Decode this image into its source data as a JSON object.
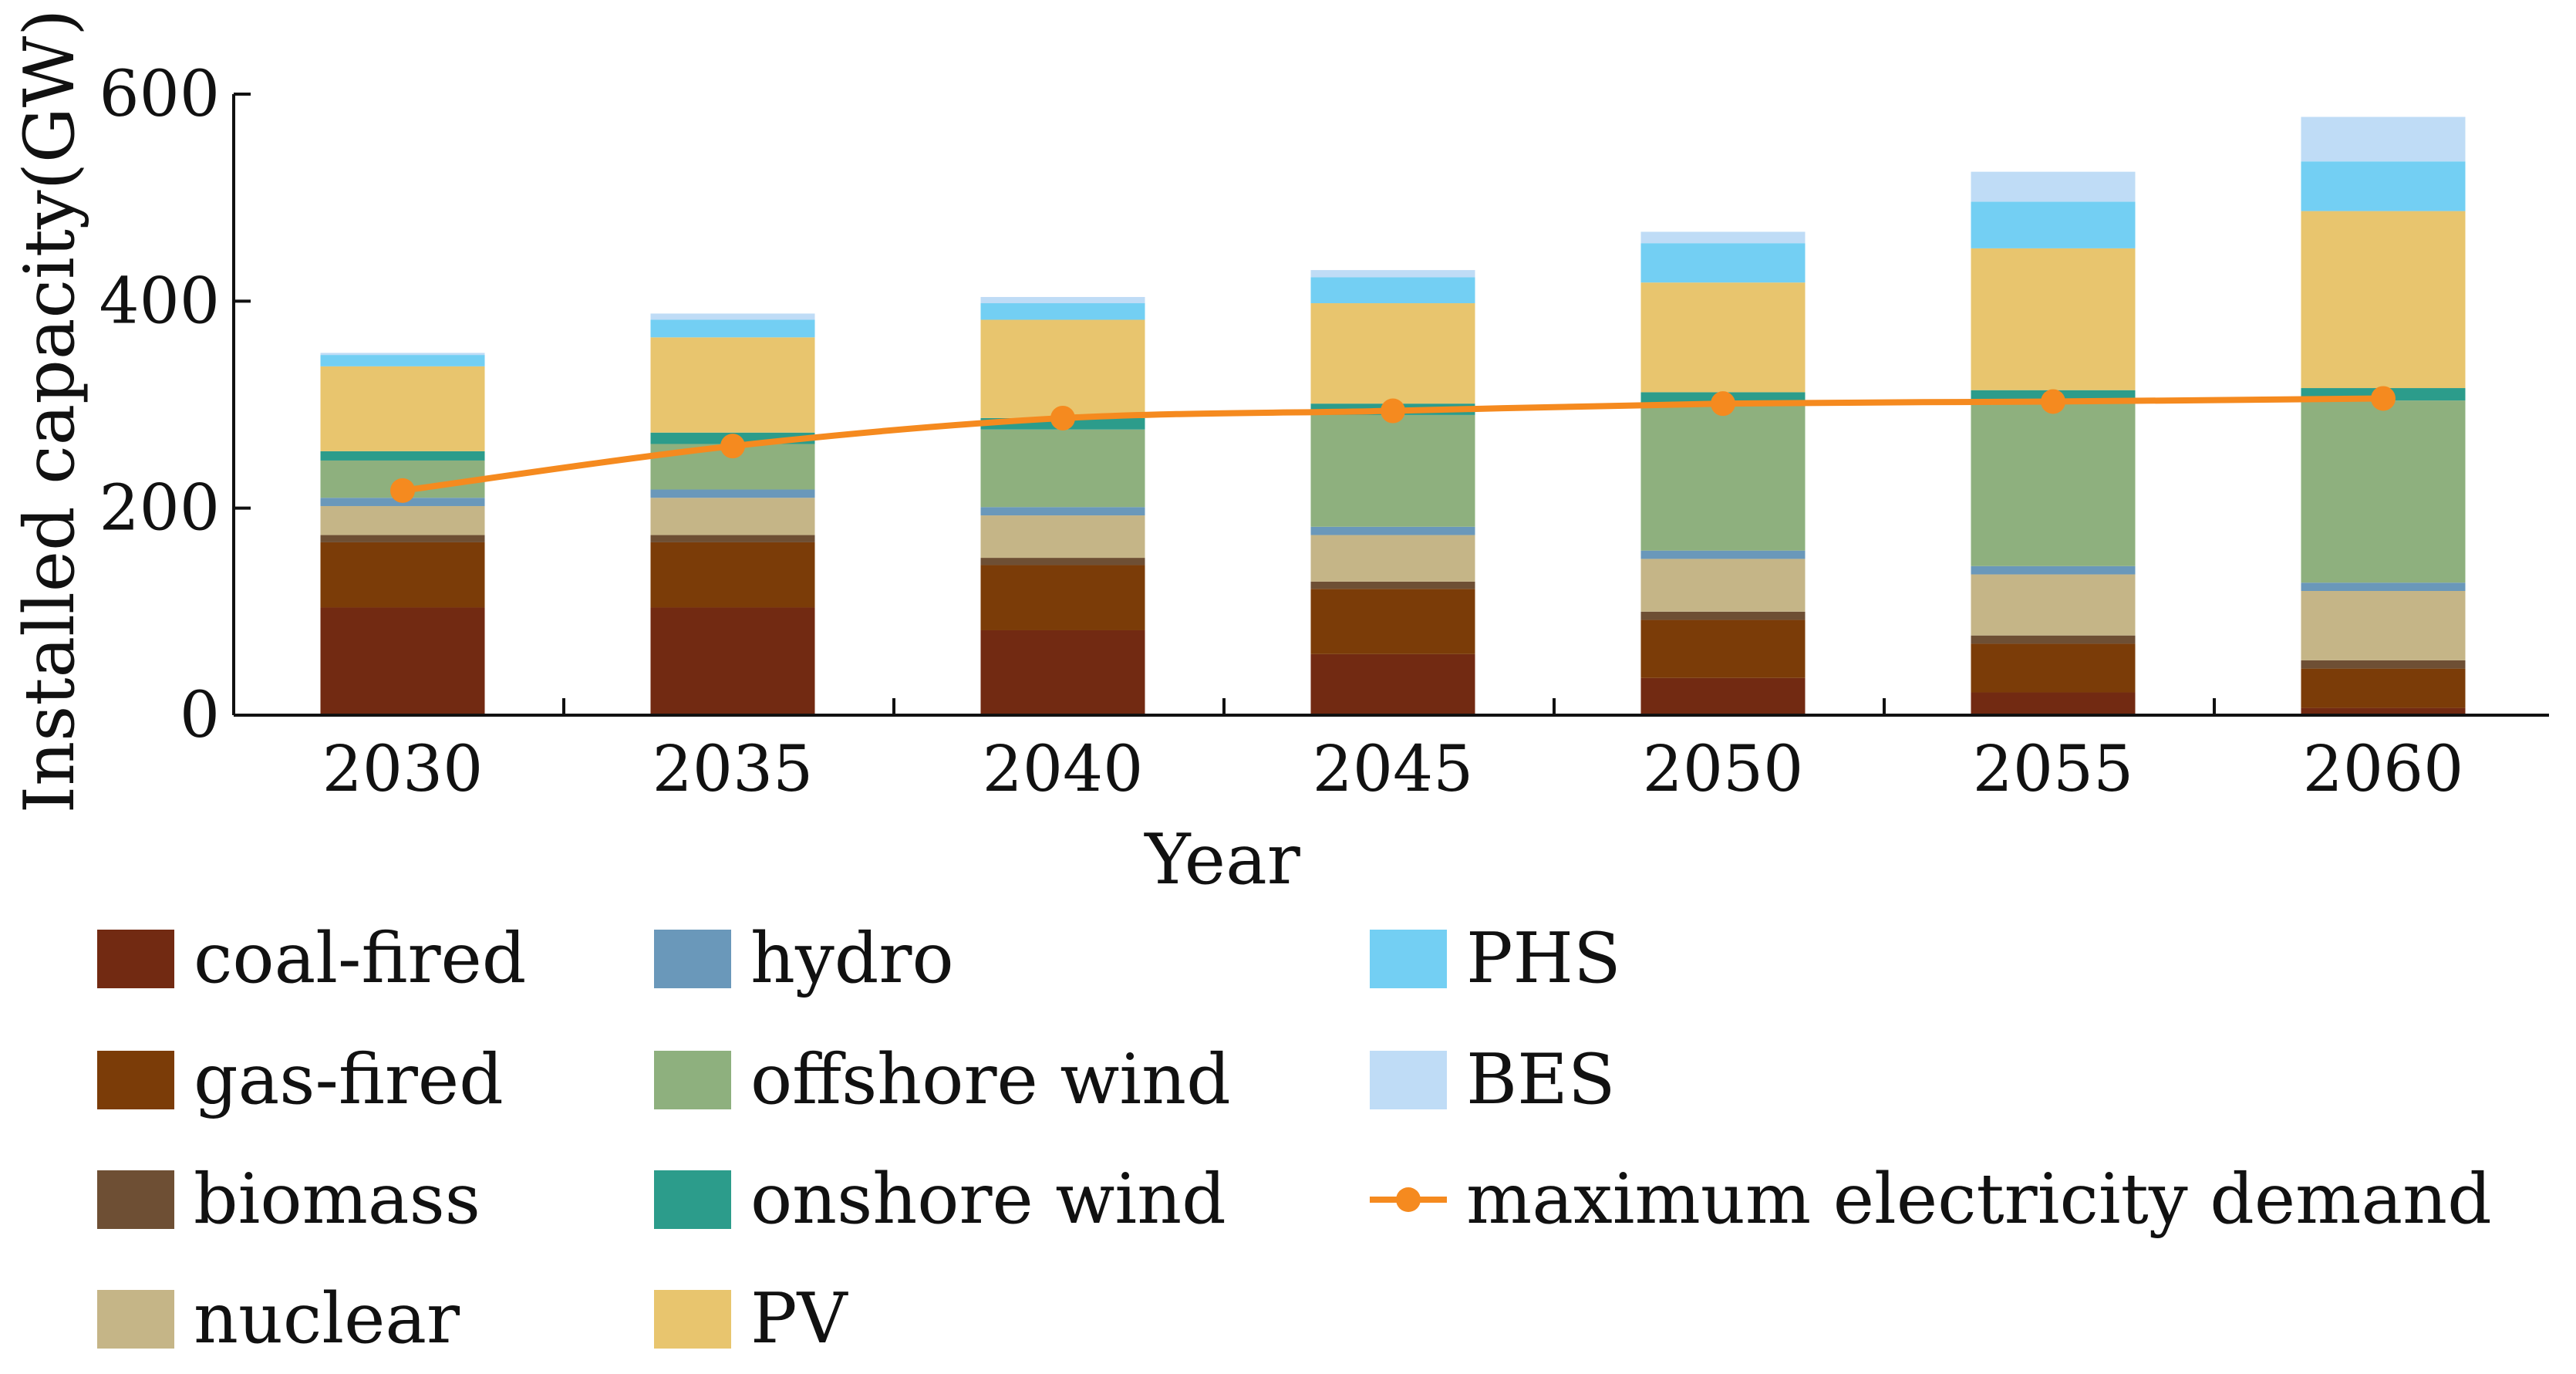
{
  "chart_data": {
    "type": "bar",
    "stacked": true,
    "xlabel": "Year",
    "ylabel": "Installed capacity(GW)",
    "ylim": [
      0,
      600
    ],
    "yticks": [
      0,
      200,
      400,
      600
    ],
    "categories": [
      "2030",
      "2035",
      "2040",
      "2045",
      "2050",
      "2055",
      "2060"
    ],
    "series": [
      {
        "name": "coal-fired",
        "color": "#722a12",
        "values": [
          104,
          104,
          82,
          59,
          36,
          22,
          7
        ]
      },
      {
        "name": "gas-fired",
        "color": "#7b3c08",
        "values": [
          63,
          63,
          63,
          63,
          56,
          47,
          38
        ]
      },
      {
        "name": "biomass",
        "color": "#6e4f34",
        "values": [
          7,
          7,
          7,
          7,
          8,
          8,
          8
        ]
      },
      {
        "name": "nuclear",
        "color": "#c5b587",
        "values": [
          28,
          36,
          41,
          45,
          51,
          59,
          67
        ]
      },
      {
        "name": "hydro",
        "color": "#6a98ba",
        "values": [
          8,
          8,
          8,
          8,
          8,
          8,
          8
        ]
      },
      {
        "name": "offshore wind",
        "color": "#8eb07e",
        "values": [
          36,
          44,
          75,
          108,
          141,
          158,
          176
        ]
      },
      {
        "name": "onshore wind",
        "color": "#2c9c8b",
        "values": [
          9,
          11,
          11,
          11,
          12,
          12,
          12
        ]
      },
      {
        "name": "PV",
        "color": "#e8c56e",
        "values": [
          82,
          92,
          95,
          97,
          106,
          137,
          171
        ]
      },
      {
        "name": "PHS",
        "color": "#73cff3",
        "values": [
          11,
          17,
          16,
          25,
          38,
          45,
          48
        ]
      },
      {
        "name": "BES",
        "color": "#bfdcf6",
        "values": [
          2,
          6,
          6,
          7,
          11,
          29,
          43
        ]
      }
    ],
    "line_series": {
      "name": "maximum electricity demand",
      "color": "#f58a1f",
      "values": [
        217,
        260,
        287,
        294,
        301,
        303,
        306
      ]
    },
    "legend": {
      "placement": "bottom",
      "columns": 3
    }
  }
}
